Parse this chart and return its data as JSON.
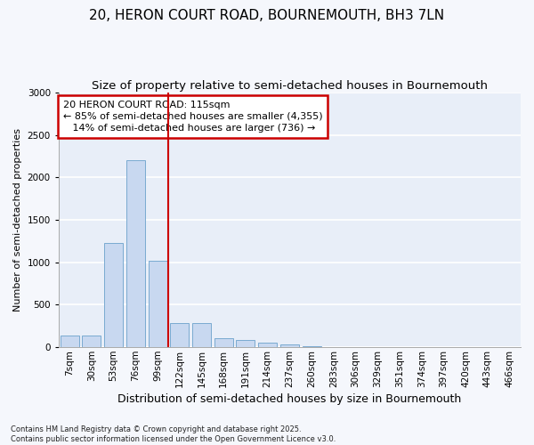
{
  "title_line1": "20, HERON COURT ROAD, BOURNEMOUTH, BH3 7LN",
  "title_line2": "Size of property relative to semi-detached houses in Bournemouth",
  "xlabel": "Distribution of semi-detached houses by size in Bournemouth",
  "ylabel": "Number of semi-detached properties",
  "footnote": "Contains HM Land Registry data © Crown copyright and database right 2025.\nContains public sector information licensed under the Open Government Licence v3.0.",
  "bar_labels": [
    "7sqm",
    "30sqm",
    "53sqm",
    "76sqm",
    "99sqm",
    "122sqm",
    "145sqm",
    "168sqm",
    "191sqm",
    "214sqm",
    "237sqm",
    "260sqm",
    "283sqm",
    "306sqm",
    "329sqm",
    "351sqm",
    "374sqm",
    "397sqm",
    "420sqm",
    "443sqm",
    "466sqm"
  ],
  "bar_values": [
    140,
    140,
    1230,
    2200,
    1020,
    290,
    285,
    105,
    90,
    55,
    30,
    10,
    0,
    0,
    0,
    0,
    0,
    0,
    0,
    0,
    0
  ],
  "bar_color": "#c8d8f0",
  "bar_edge_color": "#7aaad0",
  "background_color": "#e8eef8",
  "grid_color": "#ffffff",
  "fig_background": "#f5f7fc",
  "vline_color": "#cc0000",
  "vline_x": 4.5,
  "annotation_line1": "20 HERON COURT ROAD: 115sqm",
  "annotation_line2": "← 85% of semi-detached houses are smaller (4,355)",
  "annotation_line3": "   14% of semi-detached houses are larger (736) →",
  "annotation_box_color": "#cc0000",
  "ylim": [
    0,
    3000
  ],
  "yticks": [
    0,
    500,
    1000,
    1500,
    2000,
    2500,
    3000
  ],
  "title_fontsize": 11,
  "subtitle_fontsize": 9.5,
  "ylabel_fontsize": 8,
  "xlabel_fontsize": 9,
  "tick_fontsize": 7.5,
  "annot_fontsize": 8
}
